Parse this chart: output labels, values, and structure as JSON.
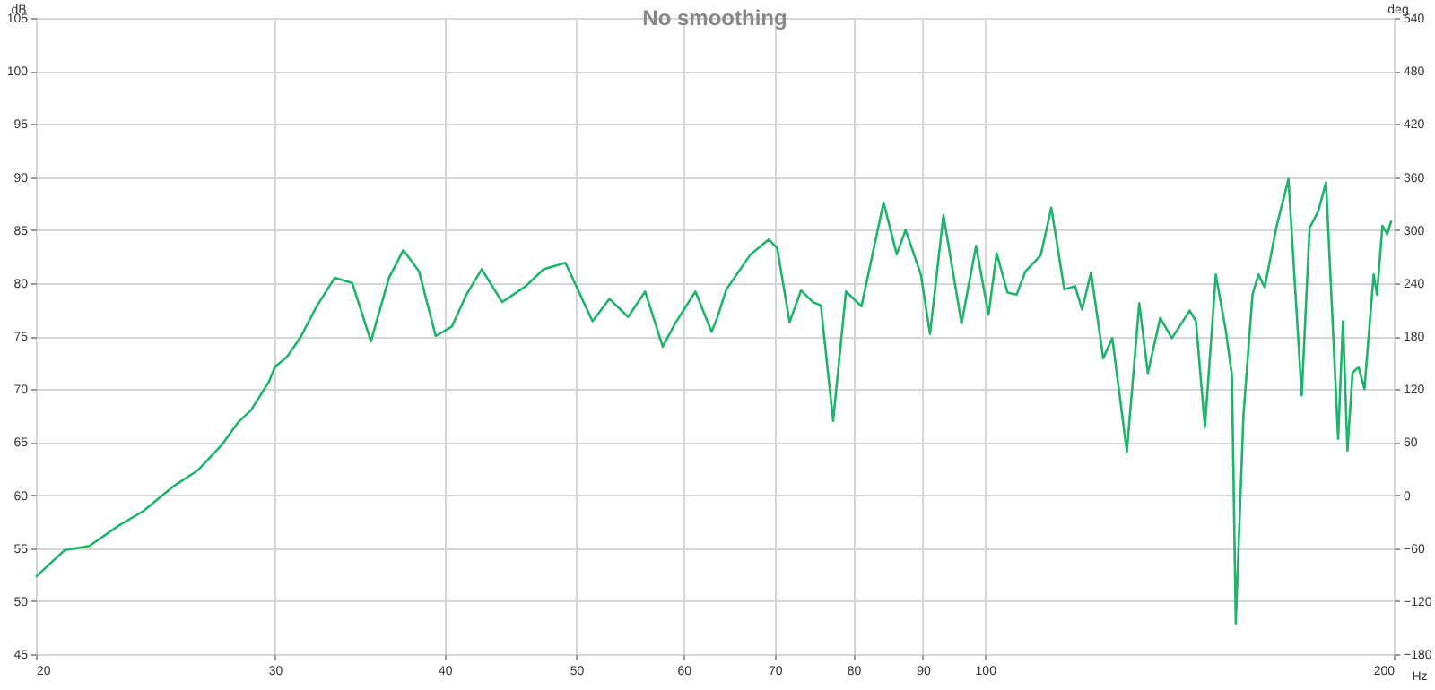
{
  "chart_data": {
    "type": "line",
    "title": "No smoothing",
    "xlabel": "Hz",
    "ylabel": "dB",
    "y2label": "deg",
    "log": "x",
    "grid": true,
    "marker": "none",
    "line_style": "solid",
    "xlim": [
      20,
      200
    ],
    "xticks": [
      20,
      30,
      40,
      50,
      60,
      70,
      80,
      90,
      100,
      200
    ],
    "ylim": [
      45,
      105
    ],
    "yticks": [
      45,
      50,
      55,
      60,
      65,
      70,
      75,
      80,
      85,
      90,
      95,
      100,
      105
    ],
    "y2lim": [
      -180,
      540
    ],
    "y2ticks": [
      -180,
      -120,
      -60,
      0,
      60,
      120,
      180,
      240,
      300,
      360,
      420,
      480,
      540
    ],
    "x": [
      20.0,
      21.0,
      21.9,
      23.0,
      24.0,
      25.3,
      26.3,
      27.4,
      28.2,
      28.8,
      29.7,
      30.0,
      30.6,
      31.3,
      32.2,
      33.2,
      34.2,
      35.3,
      36.4,
      37.3,
      38.3,
      39.4,
      40.5,
      41.5,
      42.6,
      44.1,
      45.9,
      47.3,
      49.1,
      51.4,
      52.9,
      54.6,
      56.2,
      57.9,
      59.2,
      61.2,
      62.9,
      63.5,
      64.5,
      67.2,
      69.3,
      70.3,
      71.8,
      73.2,
      74.7,
      75.7,
      77.3,
      79.0,
      81.1,
      84.2,
      86.1,
      87.4,
      89.7,
      91.1,
      93.2,
      96.1,
      98.5,
      100.6,
      102.0,
      103.9,
      105.5,
      107.1,
      109.9,
      111.9,
      114.4,
      116.5,
      117.9,
      119.7,
      122.2,
      124.1,
      127.2,
      129.9,
      131.8,
      134.6,
      137.3,
      141.5,
      143.0,
      145.2,
      147.9,
      150.4,
      152.0,
      153.0,
      155.0,
      157.4,
      159.0,
      160.7,
      164.0,
      167.3,
      171.1,
      173.4,
      176.0,
      178.3,
      182.0,
      183.5,
      184.9,
      186.5,
      188.4,
      190.3,
      193.3,
      194.4,
      196.2,
      197.8,
      199.2
    ],
    "series": [
      {
        "color": "#1fb36b",
        "values": [
          52.3,
          54.8,
          55.2,
          57.1,
          58.5,
          60.9,
          62.3,
          64.7,
          66.9,
          68.0,
          70.7,
          72.1,
          73.0,
          74.8,
          77.8,
          80.5,
          80.0,
          74.5,
          80.5,
          83.1,
          81.1,
          75.0,
          75.9,
          78.9,
          81.3,
          78.2,
          79.7,
          81.3,
          81.9,
          76.4,
          78.5,
          76.8,
          79.2,
          74.0,
          76.3,
          79.2,
          75.4,
          76.7,
          79.4,
          82.7,
          84.1,
          83.3,
          76.3,
          79.3,
          78.2,
          77.9,
          67.0,
          79.2,
          77.8,
          87.6,
          82.7,
          85.0,
          80.8,
          75.2,
          86.4,
          76.2,
          83.5,
          77.0,
          82.8,
          79.1,
          78.9,
          81.1,
          82.6,
          87.1,
          79.4,
          79.7,
          77.5,
          81.0,
          72.9,
          74.8,
          64.1,
          78.1,
          71.5,
          76.7,
          74.8,
          77.4,
          76.4,
          66.4,
          80.8,
          75.6,
          71.3,
          47.9,
          67.5,
          78.9,
          80.8,
          79.6,
          85.4,
          89.8,
          69.4,
          85.2,
          86.8,
          89.5,
          65.3,
          76.4,
          64.2,
          71.5,
          72.1,
          70.0,
          80.8,
          78.9,
          85.4,
          84.6,
          85.9
        ]
      }
    ]
  }
}
